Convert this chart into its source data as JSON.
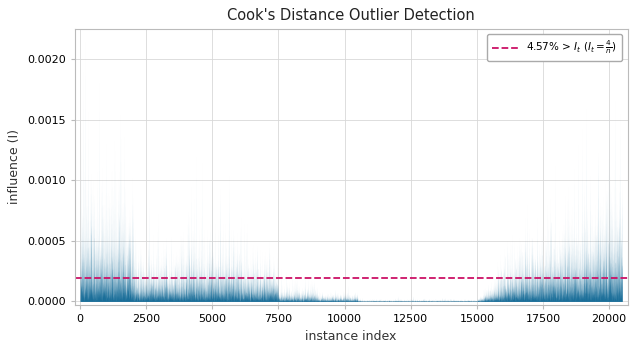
{
  "title": "Cook's Distance Outlier Detection",
  "xlabel": "instance index",
  "ylabel": "influence (I)",
  "xlim": [
    -200,
    20700
  ],
  "ylim": [
    -3e-05,
    0.00225
  ],
  "threshold": 0.000195,
  "bar_color": "#1a6e99",
  "threshold_color": "#cc1166",
  "n_points": 20500,
  "seed": 7,
  "yticks": [
    0.0,
    0.0005,
    0.001,
    0.0015,
    0.002
  ],
  "xticks": [
    0,
    2500,
    5000,
    7500,
    10000,
    12500,
    15000,
    17500,
    20000
  ],
  "grid_color": "#d8d8d8",
  "background_color": "#ffffff"
}
